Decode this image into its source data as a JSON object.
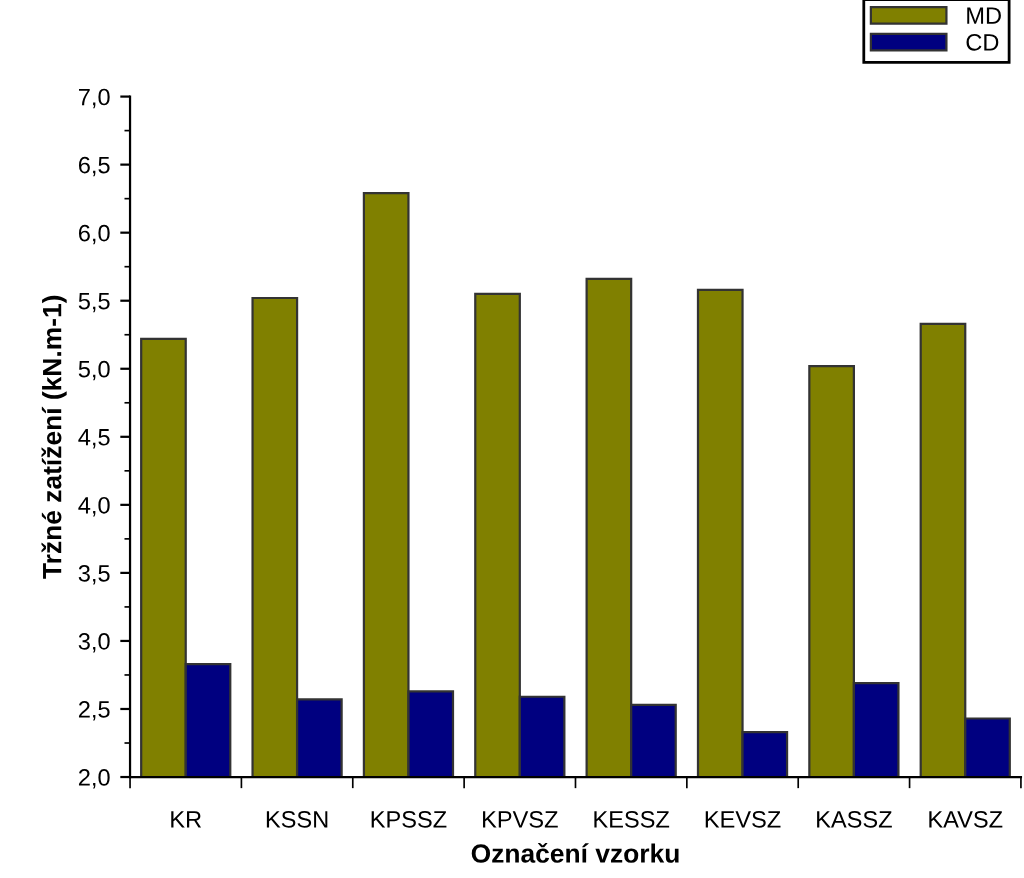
{
  "chart_data": {
    "type": "bar",
    "xlabel": "Označení vzorku",
    "ylabel": "Tržné zatížení (kN.m-1)",
    "categories": [
      "KR",
      "KSSN",
      "KPSSZ",
      "KPVSZ",
      "KESSZ",
      "KEVSZ",
      "KASSZ",
      "KAVSZ"
    ],
    "series": [
      {
        "name": "MD",
        "color": "#808000",
        "values": [
          5.22,
          5.52,
          6.29,
          5.55,
          5.66,
          5.58,
          5.02,
          5.33
        ]
      },
      {
        "name": "CD",
        "color": "#000080",
        "values": [
          2.83,
          2.57,
          2.63,
          2.59,
          2.53,
          2.33,
          2.69,
          2.43
        ]
      }
    ],
    "ylim": [
      2.0,
      7.0
    ],
    "yticks": [
      {
        "value": 2.0,
        "label": "2,0"
      },
      {
        "value": 2.5,
        "label": "2,5"
      },
      {
        "value": 3.0,
        "label": "3,0"
      },
      {
        "value": 3.5,
        "label": "3,5"
      },
      {
        "value": 4.0,
        "label": "4,0"
      },
      {
        "value": 4.5,
        "label": "4,5"
      },
      {
        "value": 5.0,
        "label": "5,0"
      },
      {
        "value": 5.5,
        "label": "5,5"
      },
      {
        "value": 6.0,
        "label": "6,0"
      },
      {
        "value": 6.5,
        "label": "6,5"
      },
      {
        "value": 7.0,
        "label": "7,0"
      }
    ],
    "grid": false,
    "legend": "top right"
  }
}
